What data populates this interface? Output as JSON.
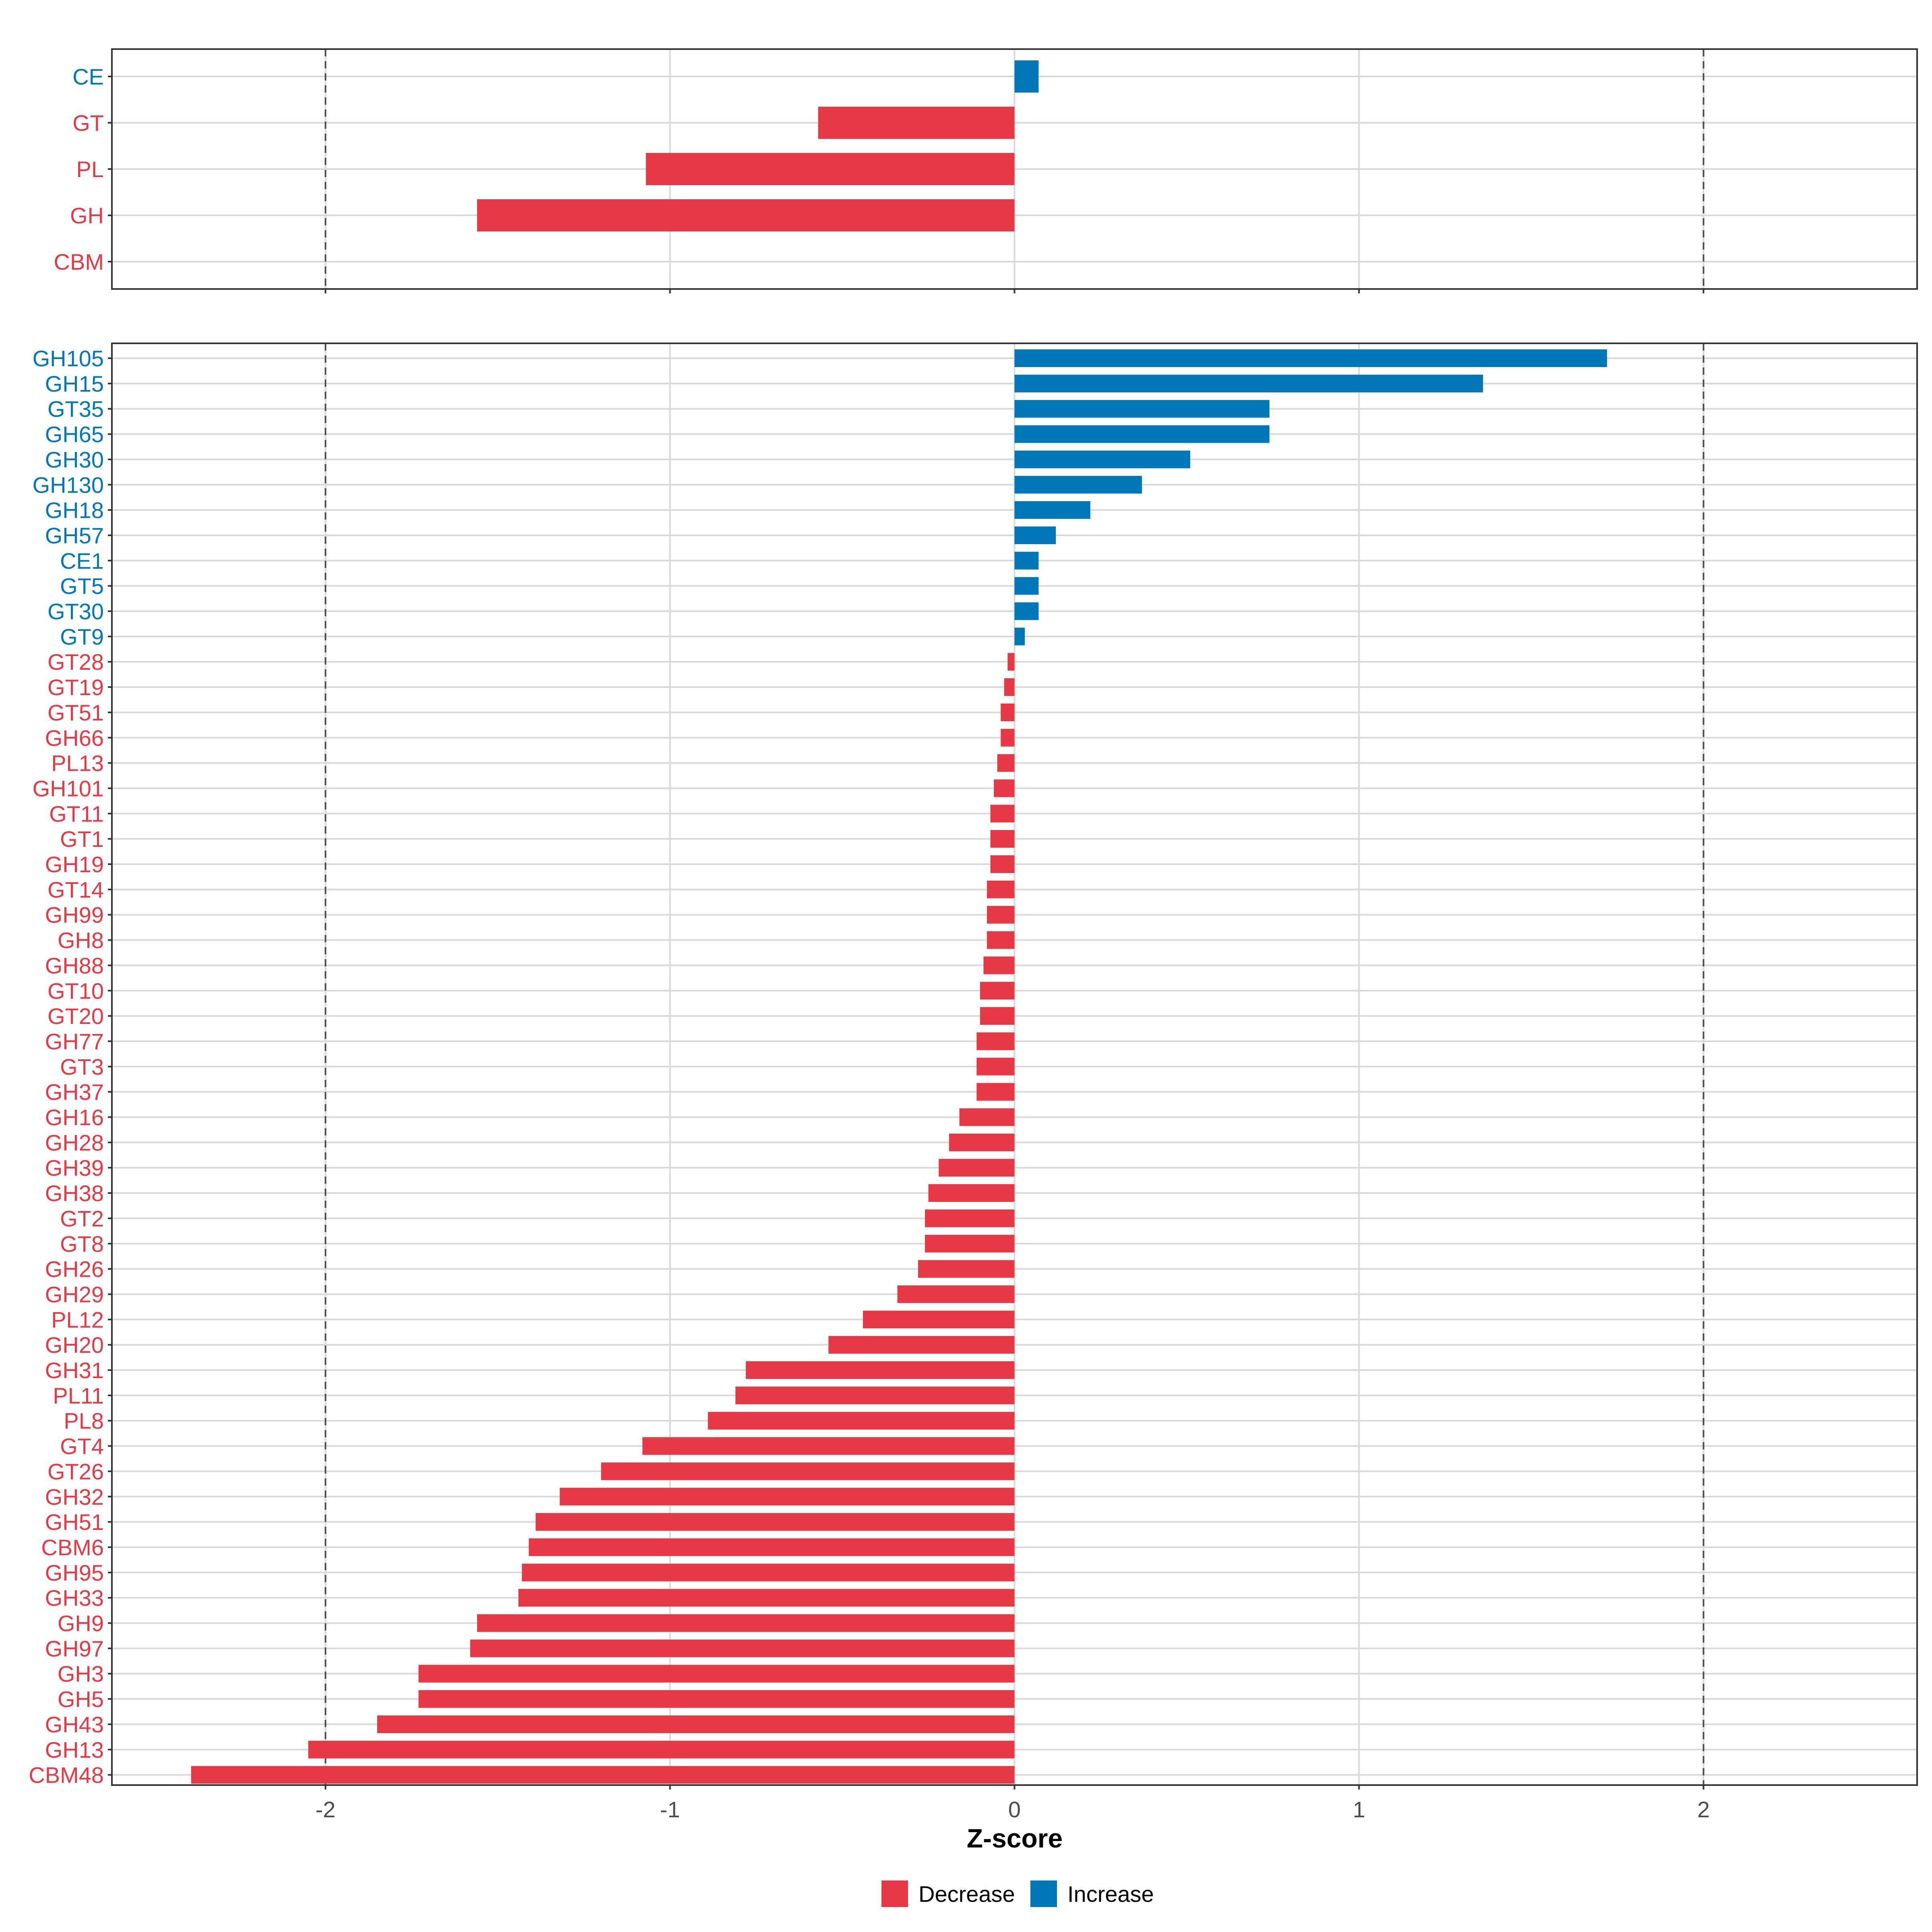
{
  "chart_data": [
    {
      "type": "bar",
      "orientation": "horizontal",
      "panel": "top",
      "categories": [
        "CE",
        "GT",
        "PL",
        "GH",
        "CBM"
      ],
      "values": [
        0.07,
        -0.57,
        -1.07,
        -1.56,
        0.0
      ],
      "xlim": [
        -2.62,
        2.62
      ],
      "reference_lines": [
        -2,
        2
      ],
      "grid": true
    },
    {
      "type": "bar",
      "orientation": "horizontal",
      "panel": "bottom",
      "categories": [
        "GH105",
        "GH15",
        "GT35",
        "GH65",
        "GH30",
        "GH130",
        "GH18",
        "GH57",
        "CE1",
        "GT5",
        "GT30",
        "GT9",
        "GT28",
        "GT19",
        "GT51",
        "GH66",
        "PL13",
        "GH101",
        "GT11",
        "GT1",
        "GH19",
        "GT14",
        "GH99",
        "GH8",
        "GH88",
        "GT10",
        "GT20",
        "GH77",
        "GT3",
        "GH37",
        "GH16",
        "GH28",
        "GH39",
        "GH38",
        "GT2",
        "GT8",
        "GH26",
        "GH29",
        "PL12",
        "GH20",
        "GH31",
        "PL11",
        "PL8",
        "GT4",
        "GT26",
        "GH32",
        "GH51",
        "CBM6",
        "GH95",
        "GH33",
        "GH9",
        "GH97",
        "GH3",
        "GH5",
        "GH43",
        "GH13",
        "CBM48"
      ],
      "values": [
        1.72,
        1.36,
        0.74,
        0.74,
        0.51,
        0.37,
        0.22,
        0.12,
        0.07,
        0.07,
        0.07,
        0.03,
        -0.02,
        -0.03,
        -0.04,
        -0.04,
        -0.05,
        -0.06,
        -0.07,
        -0.07,
        -0.07,
        -0.08,
        -0.08,
        -0.08,
        -0.09,
        -0.1,
        -0.1,
        -0.11,
        -0.11,
        -0.11,
        -0.16,
        -0.19,
        -0.22,
        -0.25,
        -0.26,
        -0.26,
        -0.28,
        -0.34,
        -0.44,
        -0.54,
        -0.78,
        -0.81,
        -0.89,
        -1.08,
        -1.2,
        -1.32,
        -1.39,
        -1.41,
        -1.43,
        -1.44,
        -1.56,
        -1.58,
        -1.73,
        -1.73,
        -1.85,
        -2.05,
        -2.39
      ],
      "xlim": [
        -2.62,
        2.62
      ],
      "xticks": [
        -2,
        -1,
        0,
        1,
        2
      ],
      "xtick_labels": [
        "-2",
        "-1",
        "0",
        "1",
        "2"
      ],
      "xlabel": "Z-score",
      "reference_lines": [
        -2,
        2
      ],
      "grid": true
    }
  ],
  "legend": {
    "placement": "bottom",
    "items": [
      {
        "label": "Decrease",
        "color": "#E63946"
      },
      {
        "label": "Increase",
        "color": "#0077B6"
      }
    ]
  },
  "colors": {
    "decrease": "#E63946",
    "increase": "#0077B6",
    "grid": "#D9D9D9",
    "reference_line": "#4D4D4D"
  }
}
